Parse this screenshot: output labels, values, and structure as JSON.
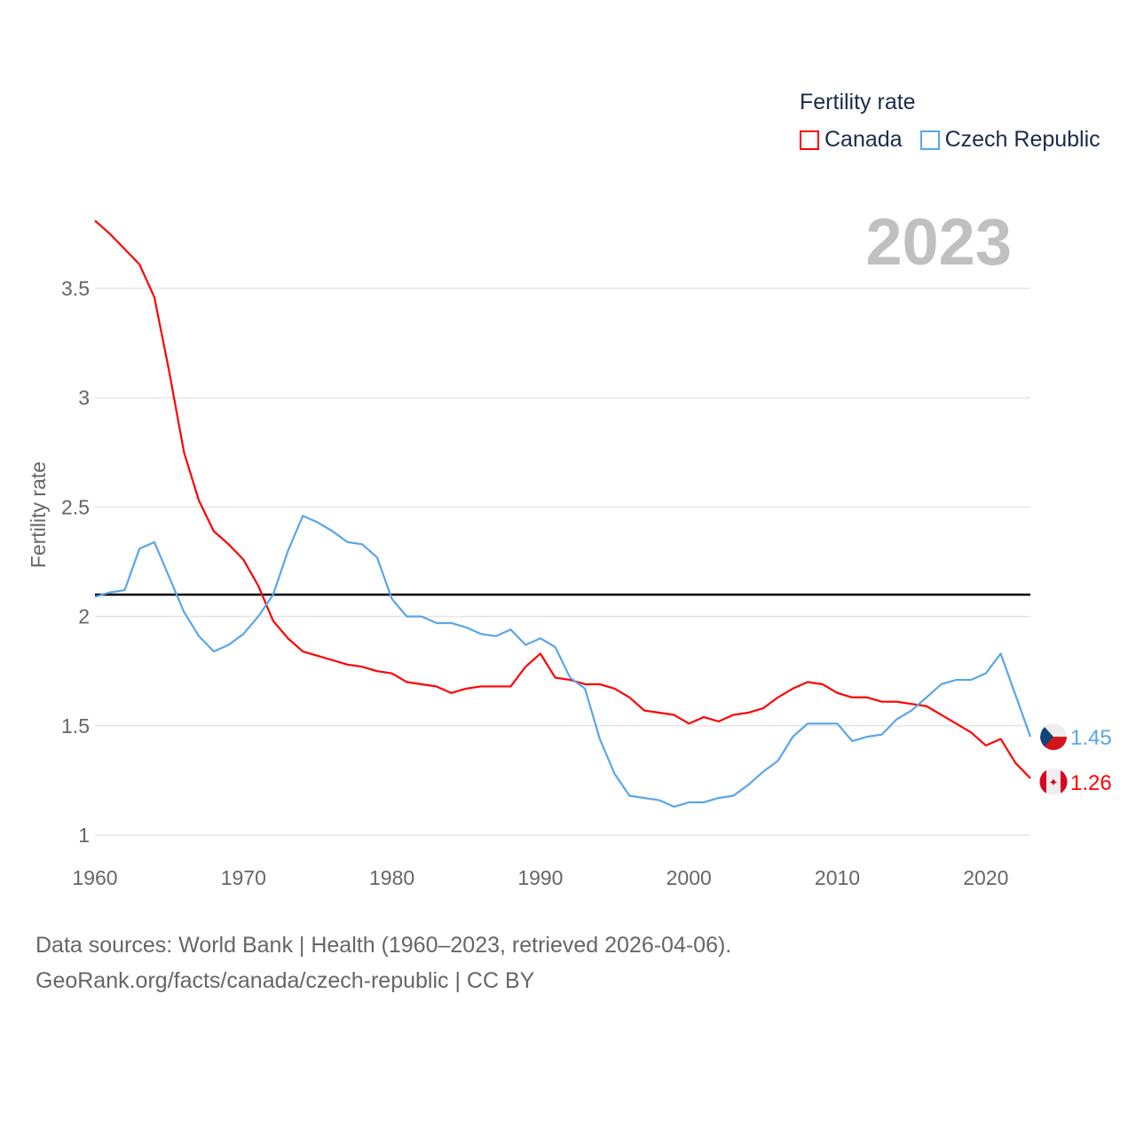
{
  "legend": {
    "title": "Fertility rate",
    "items": [
      {
        "label": "Canada",
        "color": "#ff0000"
      },
      {
        "label": "Czech Republic",
        "color": "#5aa5ea"
      }
    ]
  },
  "year_label": "2023",
  "footer": {
    "line1": "Data sources: World Bank | Health (1960–2023, retrieved 2026-04-06).",
    "line2": "GeoRank.org/facts/canada/czech-republic | CC BY"
  },
  "chart_data": {
    "type": "line",
    "title": "Fertility rate",
    "xlabel": "",
    "ylabel": "Fertility rate",
    "xlim": [
      1960,
      2023
    ],
    "ylim": [
      1,
      3.85
    ],
    "yticks": [
      "1",
      "1.5",
      "2",
      "2.5",
      "3",
      "3.5"
    ],
    "xticks": [
      "1960",
      "1970",
      "1980",
      "1990",
      "2000",
      "2010",
      "2020"
    ],
    "grid": true,
    "reference_line": 2.1,
    "x": [
      1960,
      1961,
      1962,
      1963,
      1964,
      1965,
      1966,
      1967,
      1968,
      1969,
      1970,
      1971,
      1972,
      1973,
      1974,
      1975,
      1976,
      1977,
      1978,
      1979,
      1980,
      1981,
      1982,
      1983,
      1984,
      1985,
      1986,
      1987,
      1988,
      1989,
      1990,
      1991,
      1992,
      1993,
      1994,
      1995,
      1996,
      1997,
      1998,
      1999,
      2000,
      2001,
      2002,
      2003,
      2004,
      2005,
      2006,
      2007,
      2008,
      2009,
      2010,
      2011,
      2012,
      2013,
      2014,
      2015,
      2016,
      2017,
      2018,
      2019,
      2020,
      2021,
      2022,
      2023
    ],
    "series": [
      {
        "name": "Canada",
        "color": "#ff0000",
        "end_label": "1.26",
        "values": [
          3.81,
          3.75,
          3.68,
          3.61,
          3.46,
          3.12,
          2.75,
          2.53,
          2.39,
          2.33,
          2.26,
          2.14,
          1.98,
          1.9,
          1.84,
          1.82,
          1.8,
          1.78,
          1.77,
          1.75,
          1.74,
          1.7,
          1.69,
          1.68,
          1.65,
          1.67,
          1.68,
          1.68,
          1.68,
          1.77,
          1.83,
          1.72,
          1.71,
          1.69,
          1.69,
          1.67,
          1.63,
          1.57,
          1.56,
          1.55,
          1.51,
          1.54,
          1.52,
          1.55,
          1.56,
          1.58,
          1.63,
          1.67,
          1.7,
          1.69,
          1.65,
          1.63,
          1.63,
          1.61,
          1.61,
          1.6,
          1.59,
          1.55,
          1.51,
          1.47,
          1.41,
          1.44,
          1.33,
          1.26
        ]
      },
      {
        "name": "Czech Republic",
        "color": "#5aa5ea",
        "end_label": "1.45",
        "values": [
          2.09,
          2.11,
          2.12,
          2.31,
          2.34,
          2.18,
          2.02,
          1.91,
          1.84,
          1.87,
          1.92,
          2.0,
          2.1,
          2.3,
          2.46,
          2.43,
          2.39,
          2.34,
          2.33,
          2.27,
          2.08,
          2.0,
          2.0,
          1.97,
          1.97,
          1.95,
          1.92,
          1.91,
          1.94,
          1.87,
          1.9,
          1.86,
          1.72,
          1.67,
          1.44,
          1.28,
          1.18,
          1.17,
          1.16,
          1.13,
          1.15,
          1.15,
          1.17,
          1.18,
          1.23,
          1.29,
          1.34,
          1.45,
          1.51,
          1.51,
          1.51,
          1.43,
          1.45,
          1.46,
          1.53,
          1.57,
          1.63,
          1.69,
          1.71,
          1.71,
          1.74,
          1.83,
          1.64,
          1.45
        ]
      }
    ]
  }
}
